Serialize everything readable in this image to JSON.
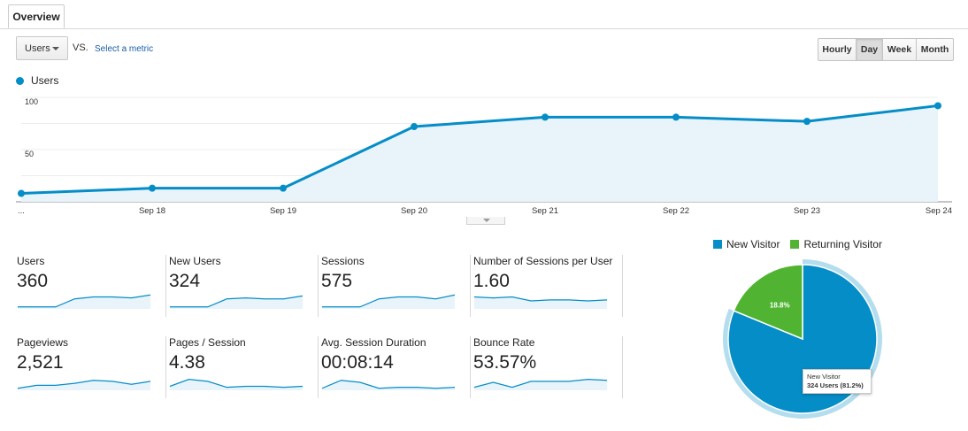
{
  "tabs": {
    "overview": "Overview"
  },
  "controls": {
    "metric_label": "Users",
    "vs": "VS.",
    "select_metric": "Select a metric",
    "intervals": [
      {
        "label": "Hourly",
        "active": false
      },
      {
        "label": "Day",
        "active": true
      },
      {
        "label": "Week",
        "active": false
      },
      {
        "label": "Month",
        "active": false
      }
    ]
  },
  "chart_data": {
    "type": "area",
    "categories": [
      "...",
      "Sep 18",
      "Sep 19",
      "Sep 20",
      "Sep 21",
      "Sep 22",
      "Sep 23",
      "Sep 24"
    ],
    "series": [
      {
        "name": "Users",
        "values": [
          8,
          13,
          13,
          72,
          81,
          81,
          77,
          92
        ]
      }
    ],
    "yticks": [
      "100",
      "50"
    ],
    "ylim": [
      0,
      100
    ],
    "color": "#058dc7",
    "fill": "#e8f4fa",
    "legend": "top-left",
    "grid": true
  },
  "metrics": [
    {
      "label": "Users",
      "value": "360",
      "spark": [
        2,
        2,
        2,
        10,
        12,
        12,
        11,
        14
      ]
    },
    {
      "label": "New Users",
      "value": "324",
      "spark": [
        2,
        2,
        2,
        10,
        11,
        10,
        10,
        13
      ]
    },
    {
      "label": "Sessions",
      "value": "575",
      "spark": [
        2,
        2,
        2,
        10,
        12,
        12,
        10,
        14
      ]
    },
    {
      "label": "Number of Sessions per User",
      "value": "1.60",
      "spark": [
        12,
        11,
        12,
        8,
        9,
        9,
        8,
        9
      ]
    },
    {
      "label": "Pageviews",
      "value": "2,521",
      "spark": [
        2,
        5,
        5,
        7,
        10,
        9,
        6,
        9
      ]
    },
    {
      "label": "Pages / Session",
      "value": "4.38",
      "spark": [
        4,
        11,
        9,
        3,
        4,
        4,
        3,
        4
      ]
    },
    {
      "label": "Avg. Session Duration",
      "value": "00:08:14",
      "spark": [
        2,
        10,
        8,
        2,
        3,
        3,
        2,
        3
      ]
    },
    {
      "label": "Bounce Rate",
      "value": "53.57%",
      "spark": [
        3,
        8,
        3,
        9,
        9,
        9,
        11,
        10
      ]
    }
  ],
  "pie": {
    "legend": [
      {
        "label": "New Visitor",
        "color": "#058dc7"
      },
      {
        "label": "Returning Visitor",
        "color": "#50b432"
      }
    ],
    "slices": [
      {
        "label": "New Visitor",
        "value": 81.2,
        "color": "#058dc7"
      },
      {
        "label": "Returning Visitor",
        "value": 18.8,
        "color": "#50b432",
        "text": "18.8%"
      }
    ],
    "tooltip": {
      "title": "New Visitor",
      "body": "324 Users (81.2%)"
    }
  }
}
